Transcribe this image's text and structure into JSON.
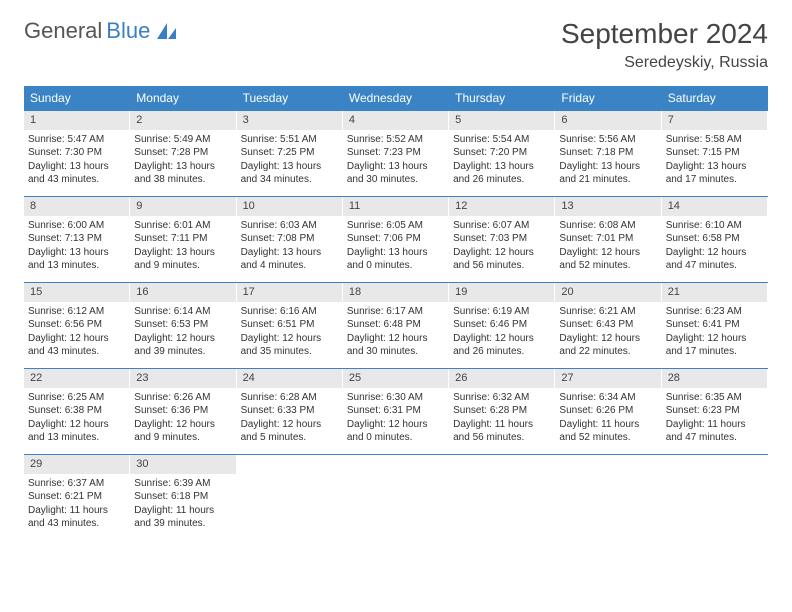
{
  "logo": {
    "text_general": "General",
    "text_blue": "Blue",
    "sail_color": "#3a7fc4"
  },
  "title": "September 2024",
  "location": "Seredeyskiy, Russia",
  "colors": {
    "header_bg": "#3a84c6",
    "header_fg": "#ffffff",
    "daynum_bg": "#e8e8e8",
    "text": "#333333",
    "divider": "#3a84c6"
  },
  "day_names": [
    "Sunday",
    "Monday",
    "Tuesday",
    "Wednesday",
    "Thursday",
    "Friday",
    "Saturday"
  ],
  "weeks": [
    [
      {
        "n": "1",
        "sr": "Sunrise: 5:47 AM",
        "ss": "Sunset: 7:30 PM",
        "dl": "Daylight: 13 hours and 43 minutes."
      },
      {
        "n": "2",
        "sr": "Sunrise: 5:49 AM",
        "ss": "Sunset: 7:28 PM",
        "dl": "Daylight: 13 hours and 38 minutes."
      },
      {
        "n": "3",
        "sr": "Sunrise: 5:51 AM",
        "ss": "Sunset: 7:25 PM",
        "dl": "Daylight: 13 hours and 34 minutes."
      },
      {
        "n": "4",
        "sr": "Sunrise: 5:52 AM",
        "ss": "Sunset: 7:23 PM",
        "dl": "Daylight: 13 hours and 30 minutes."
      },
      {
        "n": "5",
        "sr": "Sunrise: 5:54 AM",
        "ss": "Sunset: 7:20 PM",
        "dl": "Daylight: 13 hours and 26 minutes."
      },
      {
        "n": "6",
        "sr": "Sunrise: 5:56 AM",
        "ss": "Sunset: 7:18 PM",
        "dl": "Daylight: 13 hours and 21 minutes."
      },
      {
        "n": "7",
        "sr": "Sunrise: 5:58 AM",
        "ss": "Sunset: 7:15 PM",
        "dl": "Daylight: 13 hours and 17 minutes."
      }
    ],
    [
      {
        "n": "8",
        "sr": "Sunrise: 6:00 AM",
        "ss": "Sunset: 7:13 PM",
        "dl": "Daylight: 13 hours and 13 minutes."
      },
      {
        "n": "9",
        "sr": "Sunrise: 6:01 AM",
        "ss": "Sunset: 7:11 PM",
        "dl": "Daylight: 13 hours and 9 minutes."
      },
      {
        "n": "10",
        "sr": "Sunrise: 6:03 AM",
        "ss": "Sunset: 7:08 PM",
        "dl": "Daylight: 13 hours and 4 minutes."
      },
      {
        "n": "11",
        "sr": "Sunrise: 6:05 AM",
        "ss": "Sunset: 7:06 PM",
        "dl": "Daylight: 13 hours and 0 minutes."
      },
      {
        "n": "12",
        "sr": "Sunrise: 6:07 AM",
        "ss": "Sunset: 7:03 PM",
        "dl": "Daylight: 12 hours and 56 minutes."
      },
      {
        "n": "13",
        "sr": "Sunrise: 6:08 AM",
        "ss": "Sunset: 7:01 PM",
        "dl": "Daylight: 12 hours and 52 minutes."
      },
      {
        "n": "14",
        "sr": "Sunrise: 6:10 AM",
        "ss": "Sunset: 6:58 PM",
        "dl": "Daylight: 12 hours and 47 minutes."
      }
    ],
    [
      {
        "n": "15",
        "sr": "Sunrise: 6:12 AM",
        "ss": "Sunset: 6:56 PM",
        "dl": "Daylight: 12 hours and 43 minutes."
      },
      {
        "n": "16",
        "sr": "Sunrise: 6:14 AM",
        "ss": "Sunset: 6:53 PM",
        "dl": "Daylight: 12 hours and 39 minutes."
      },
      {
        "n": "17",
        "sr": "Sunrise: 6:16 AM",
        "ss": "Sunset: 6:51 PM",
        "dl": "Daylight: 12 hours and 35 minutes."
      },
      {
        "n": "18",
        "sr": "Sunrise: 6:17 AM",
        "ss": "Sunset: 6:48 PM",
        "dl": "Daylight: 12 hours and 30 minutes."
      },
      {
        "n": "19",
        "sr": "Sunrise: 6:19 AM",
        "ss": "Sunset: 6:46 PM",
        "dl": "Daylight: 12 hours and 26 minutes."
      },
      {
        "n": "20",
        "sr": "Sunrise: 6:21 AM",
        "ss": "Sunset: 6:43 PM",
        "dl": "Daylight: 12 hours and 22 minutes."
      },
      {
        "n": "21",
        "sr": "Sunrise: 6:23 AM",
        "ss": "Sunset: 6:41 PM",
        "dl": "Daylight: 12 hours and 17 minutes."
      }
    ],
    [
      {
        "n": "22",
        "sr": "Sunrise: 6:25 AM",
        "ss": "Sunset: 6:38 PM",
        "dl": "Daylight: 12 hours and 13 minutes."
      },
      {
        "n": "23",
        "sr": "Sunrise: 6:26 AM",
        "ss": "Sunset: 6:36 PM",
        "dl": "Daylight: 12 hours and 9 minutes."
      },
      {
        "n": "24",
        "sr": "Sunrise: 6:28 AM",
        "ss": "Sunset: 6:33 PM",
        "dl": "Daylight: 12 hours and 5 minutes."
      },
      {
        "n": "25",
        "sr": "Sunrise: 6:30 AM",
        "ss": "Sunset: 6:31 PM",
        "dl": "Daylight: 12 hours and 0 minutes."
      },
      {
        "n": "26",
        "sr": "Sunrise: 6:32 AM",
        "ss": "Sunset: 6:28 PM",
        "dl": "Daylight: 11 hours and 56 minutes."
      },
      {
        "n": "27",
        "sr": "Sunrise: 6:34 AM",
        "ss": "Sunset: 6:26 PM",
        "dl": "Daylight: 11 hours and 52 minutes."
      },
      {
        "n": "28",
        "sr": "Sunrise: 6:35 AM",
        "ss": "Sunset: 6:23 PM",
        "dl": "Daylight: 11 hours and 47 minutes."
      }
    ],
    [
      {
        "n": "29",
        "sr": "Sunrise: 6:37 AM",
        "ss": "Sunset: 6:21 PM",
        "dl": "Daylight: 11 hours and 43 minutes."
      },
      {
        "n": "30",
        "sr": "Sunrise: 6:39 AM",
        "ss": "Sunset: 6:18 PM",
        "dl": "Daylight: 11 hours and 39 minutes."
      },
      null,
      null,
      null,
      null,
      null
    ]
  ]
}
